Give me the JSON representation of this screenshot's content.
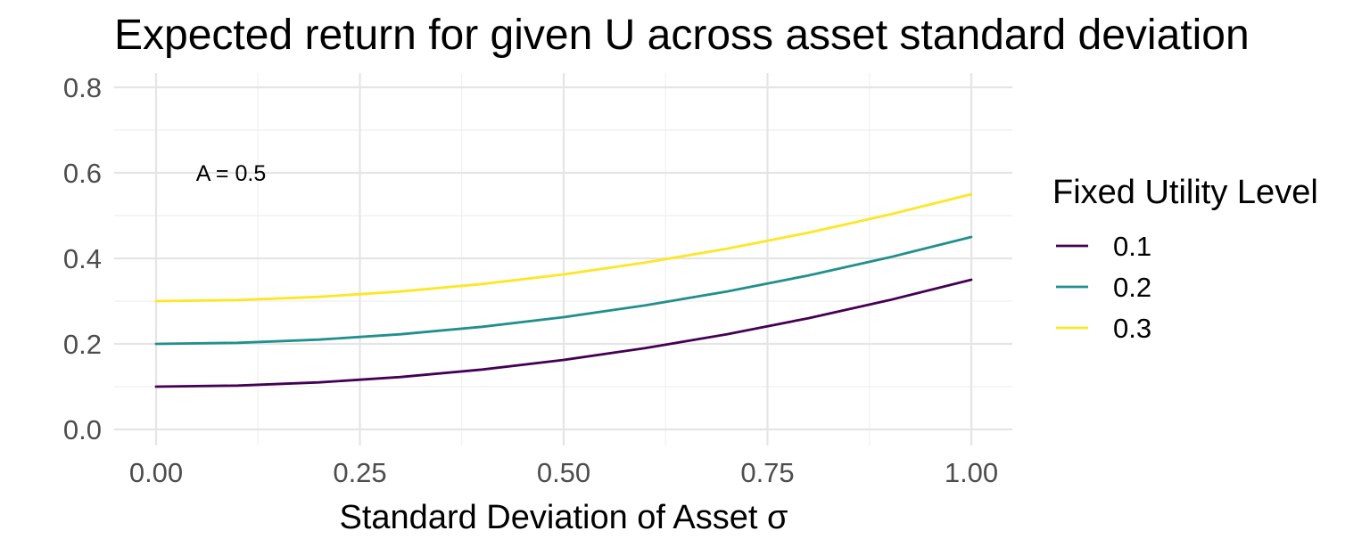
{
  "chart_data": {
    "type": "line",
    "title": "Expected return for given U across asset standard deviation",
    "xlabel": "Standard Deviation of Asset σ",
    "ylabel": "",
    "xlim": [
      0,
      1
    ],
    "ylim": [
      0,
      0.8
    ],
    "xticks": [
      0,
      0.25,
      0.5,
      0.75,
      1
    ],
    "xtick_labels": [
      "0.00",
      "0.25",
      "0.50",
      "0.75",
      "1.00"
    ],
    "yticks": [
      0,
      0.2,
      0.4,
      0.6,
      0.8
    ],
    "ytick_labels": [
      "0.0",
      "0.2",
      "0.4",
      "0.6",
      "0.8"
    ],
    "grid": true,
    "x": [
      0,
      0.1,
      0.2,
      0.3,
      0.4,
      0.5,
      0.6,
      0.7,
      0.8,
      0.9,
      1.0
    ],
    "series": [
      {
        "name": "0.1",
        "color": "#440154",
        "values": [
          0.1,
          0.1025,
          0.11,
          0.1225,
          0.14,
          0.1625,
          0.19,
          0.2225,
          0.26,
          0.3025,
          0.35
        ]
      },
      {
        "name": "0.2",
        "color": "#21908C",
        "values": [
          0.2,
          0.2025,
          0.21,
          0.2225,
          0.24,
          0.2625,
          0.29,
          0.3225,
          0.36,
          0.4025,
          0.45
        ]
      },
      {
        "name": "0.3",
        "color": "#FDE725",
        "values": [
          0.3,
          0.3025,
          0.31,
          0.3225,
          0.34,
          0.3625,
          0.39,
          0.4225,
          0.46,
          0.5025,
          0.55
        ]
      }
    ],
    "legend": {
      "title": "Fixed Utility Level",
      "position": "right"
    },
    "annotation": {
      "text": "A = 0.5",
      "x": 0.05,
      "y": 0.6
    }
  }
}
